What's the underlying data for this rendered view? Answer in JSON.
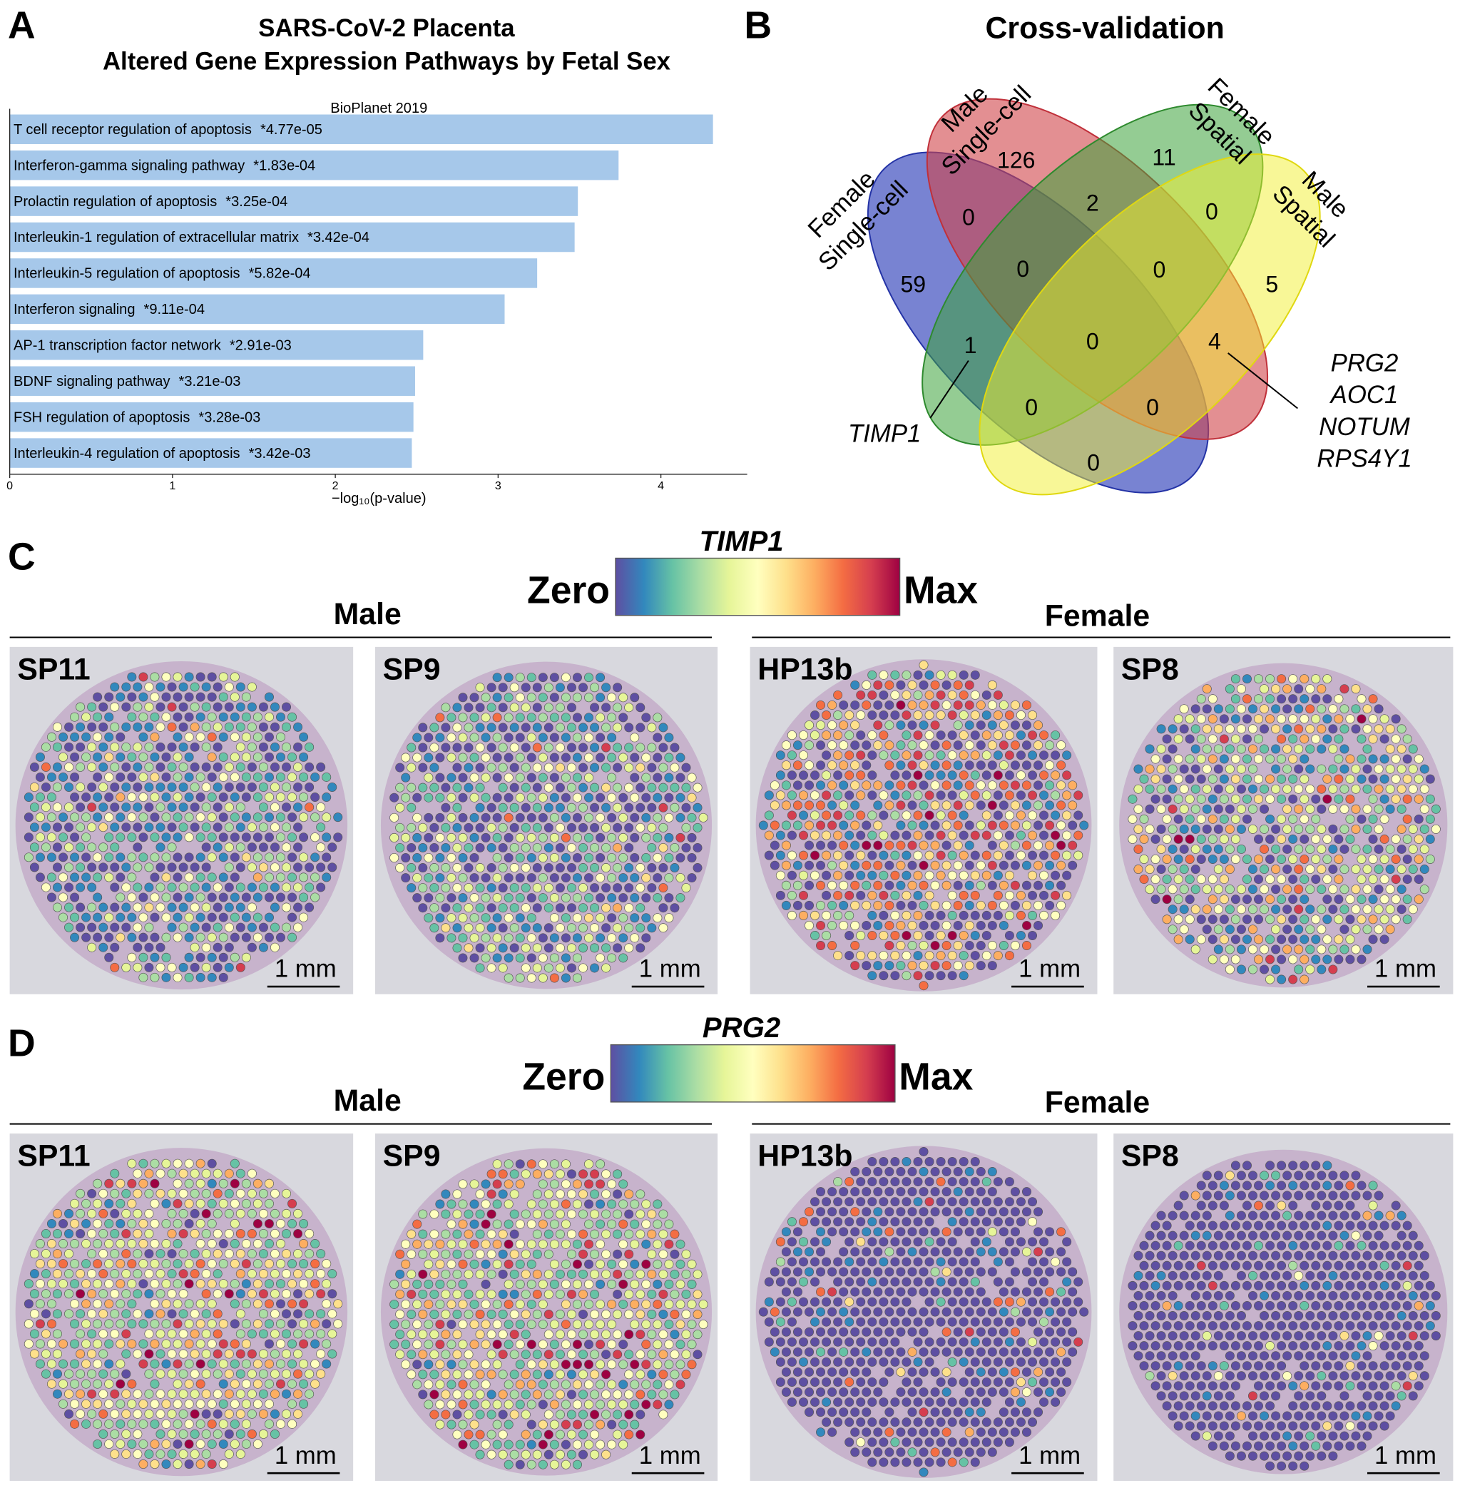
{
  "chart_data": {
    "type": "bar",
    "orientation": "horizontal",
    "panel_label": "A",
    "title": [
      "SARS-CoV-2 Placenta",
      "Altered Gene Expression Pathways by Fetal Sex"
    ],
    "subtitle": "BioPlanet 2019",
    "categories": [
      "T cell receptor regulation of apoptosis",
      "Interferon-gamma signaling pathway",
      "Prolactin regulation of apoptosis",
      "Interleukin-1 regulation of extracellular matrix",
      "Interleukin-5 regulation of apoptosis",
      "Interferon signaling",
      "AP-1 transcription factor network",
      "BDNF signaling pathway",
      "FSH regulation of apoptosis",
      "Interleukin-4 regulation of apoptosis"
    ],
    "values": [
      4.32,
      3.74,
      3.49,
      3.47,
      3.24,
      3.04,
      2.54,
      2.49,
      2.48,
      2.47
    ],
    "p_value_labels": [
      "*4.77e-05",
      "*1.83e-04",
      "*3.25e-04",
      "*3.42e-04",
      "*5.82e-04",
      "*9.11e-04",
      "*2.91e-03",
      "*3.21e-03",
      "*3.28e-03",
      "*3.42e-03"
    ],
    "color": "#a6c8ea",
    "xlim": [
      0,
      4.53
    ],
    "xticks": [
      0,
      1,
      2,
      3,
      4
    ],
    "xlabel": "−log₁₀(p-value)"
  },
  "venn": {
    "panel_label": "B",
    "title": "Cross-validation",
    "sets": [
      [
        "Female",
        "Single-cell"
      ],
      [
        "Male",
        "Single-cell"
      ],
      [
        "Female",
        "Spatial"
      ],
      [
        "Male",
        "Spatial"
      ]
    ],
    "regions": [
      126,
      11,
      59,
      5,
      0,
      2,
      0,
      0,
      0,
      1,
      0,
      4,
      0,
      0,
      0
    ],
    "annotations": [
      [
        "TIMP1"
      ],
      [
        "PRG2",
        "AOC1",
        "NOTUM",
        "RPS4Y1"
      ]
    ]
  },
  "panels": [
    {
      "label": "C",
      "gene": "TIMP1",
      "colorbar_min": "Zero",
      "colorbar_max": "Max",
      "groups": [
        "Male",
        "Female"
      ],
      "samples": [
        {
          "name": "SP11",
          "scale_bar": "1 mm"
        },
        {
          "name": "SP9",
          "scale_bar": "1 mm"
        },
        {
          "name": "HP13b",
          "scale_bar": "1 mm"
        },
        {
          "name": "SP8",
          "scale_bar": "1 mm"
        }
      ]
    },
    {
      "label": "D",
      "gene": "PRG2",
      "colorbar_min": "Zero",
      "colorbar_max": "Max",
      "groups": [
        "Male",
        "Female"
      ],
      "samples": [
        {
          "name": "SP11",
          "scale_bar": "1 mm"
        },
        {
          "name": "SP9",
          "scale_bar": "1 mm"
        },
        {
          "name": "HP13b",
          "scale_bar": "1 mm"
        },
        {
          "name": "SP8",
          "scale_bar": "1 mm"
        }
      ]
    }
  ]
}
